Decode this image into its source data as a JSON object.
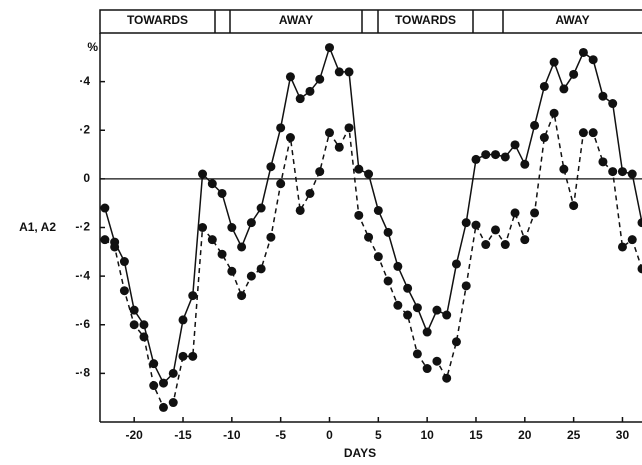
{
  "chart_data": {
    "type": "line",
    "y_label": "A1, A2",
    "x_label": "DAYS",
    "unit": "%",
    "header_labels": [
      "TOWARDS",
      "AWAY",
      "TOWARDS",
      "AWAY"
    ],
    "x": [
      -23,
      -22,
      -21,
      -20,
      -19,
      -18,
      -17,
      -16,
      -15,
      -14,
      -13,
      -12,
      -11,
      -10,
      -9,
      -8,
      -7,
      -6,
      -5,
      -4,
      -3,
      -2,
      -1,
      0,
      1,
      2,
      3,
      4,
      5,
      6,
      7,
      8,
      9,
      10,
      11,
      12,
      13,
      14,
      15,
      16,
      17,
      18,
      19,
      20,
      21,
      22,
      23,
      24,
      25,
      26,
      27,
      28,
      29,
      30,
      31,
      32
    ],
    "series": [
      {
        "color": "#111111",
        "dash": "solid",
        "values": [
          -0.12,
          -0.26,
          -0.34,
          -0.54,
          -0.6,
          -0.76,
          -0.84,
          -0.8,
          -0.58,
          -0.48,
          0.02,
          -0.02,
          -0.06,
          -0.2,
          -0.28,
          -0.18,
          -0.12,
          0.05,
          0.21,
          0.42,
          0.33,
          0.36,
          0.41,
          0.54,
          0.44,
          0.44,
          0.04,
          0.02,
          -0.13,
          -0.22,
          -0.36,
          -0.45,
          -0.53,
          -0.63,
          -0.54,
          -0.56,
          -0.35,
          -0.18,
          0.08,
          0.1,
          0.1,
          0.09,
          0.14,
          0.06,
          0.22,
          0.38,
          0.48,
          0.37,
          0.43,
          0.52,
          0.49,
          0.34,
          0.31,
          0.03,
          0.02,
          -0.18
        ]
      },
      {
        "color": "#111111",
        "dash": "dashed",
        "values": [
          -0.25,
          -0.28,
          -0.46,
          -0.6,
          -0.65,
          -0.85,
          -0.94,
          -0.92,
          -0.73,
          -0.73,
          -0.2,
          -0.25,
          -0.31,
          -0.38,
          -0.48,
          -0.4,
          -0.37,
          -0.24,
          -0.02,
          0.17,
          -0.13,
          -0.06,
          0.03,
          0.19,
          0.13,
          0.21,
          -0.15,
          -0.24,
          -0.32,
          -0.42,
          -0.52,
          -0.56,
          -0.72,
          -0.78,
          -0.75,
          -0.82,
          -0.67,
          -0.44,
          -0.19,
          -0.27,
          -0.21,
          -0.27,
          -0.14,
          -0.25,
          -0.14,
          0.17,
          0.27,
          0.04,
          -0.11,
          0.19,
          0.19,
          0.07,
          0.03,
          -0.28,
          -0.25,
          -0.37
        ]
      }
    ],
    "xlim": [
      -23.5,
      32
    ],
    "ylim": [
      -1,
      0.6
    ],
    "xticks": [
      -20,
      -15,
      -10,
      -5,
      0,
      5,
      10,
      15,
      20,
      25,
      30
    ],
    "yticks": [
      {
        "value": 0.4,
        "label": "·4"
      },
      {
        "value": 0.2,
        "label": "·2"
      },
      0,
      {
        "value": -0.2,
        "label": "-·2"
      },
      {
        "value": -0.4,
        "label": "-·4"
      },
      {
        "value": -0.6,
        "label": "-·6"
      },
      {
        "value": -0.8,
        "label": "-·8"
      }
    ],
    "zero_line": true
  }
}
